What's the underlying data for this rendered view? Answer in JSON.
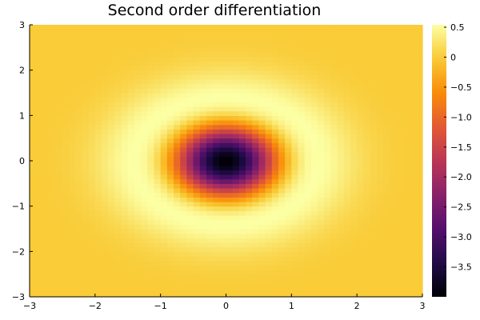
{
  "chart_data": {
    "type": "heatmap",
    "title": "Second order differentiation",
    "xlabel": "",
    "ylabel": "",
    "xlim": [
      -3,
      3
    ],
    "ylim": [
      -3,
      3
    ],
    "x_ticks": [
      -3,
      -2,
      -1,
      0,
      1,
      2,
      3
    ],
    "y_ticks": [
      -3,
      -2,
      -1,
      0,
      1,
      2,
      3
    ],
    "x_tick_labels": [
      "−3",
      "−2",
      "−1",
      "0",
      "1",
      "2",
      "3"
    ],
    "y_tick_labels": [
      "−3",
      "−2",
      "−1",
      "0",
      "1",
      "2",
      "3"
    ],
    "grid": {
      "n": 60,
      "x_min": -3,
      "x_max": 3,
      "y_min": -3,
      "y_max": 3
    },
    "function": "laplacian of gaussian: (4*(x^2+y^2) - 4) * exp(-(x^2+y^2))",
    "value_min": -4.0,
    "value_max": 0.54,
    "colormap": "inferno",
    "colorbar": {
      "ticks": [
        0.5,
        0,
        -0.5,
        -1.0,
        -1.5,
        -2.0,
        -2.5,
        -3.0,
        -3.5
      ],
      "tick_labels": [
        "0.5",
        "0",
        "−0.5",
        "−1.0",
        "−1.5",
        "−2.0",
        "−2.5",
        "−3.0",
        "−3.5"
      ]
    },
    "grid_lines": false,
    "legend": "none"
  }
}
